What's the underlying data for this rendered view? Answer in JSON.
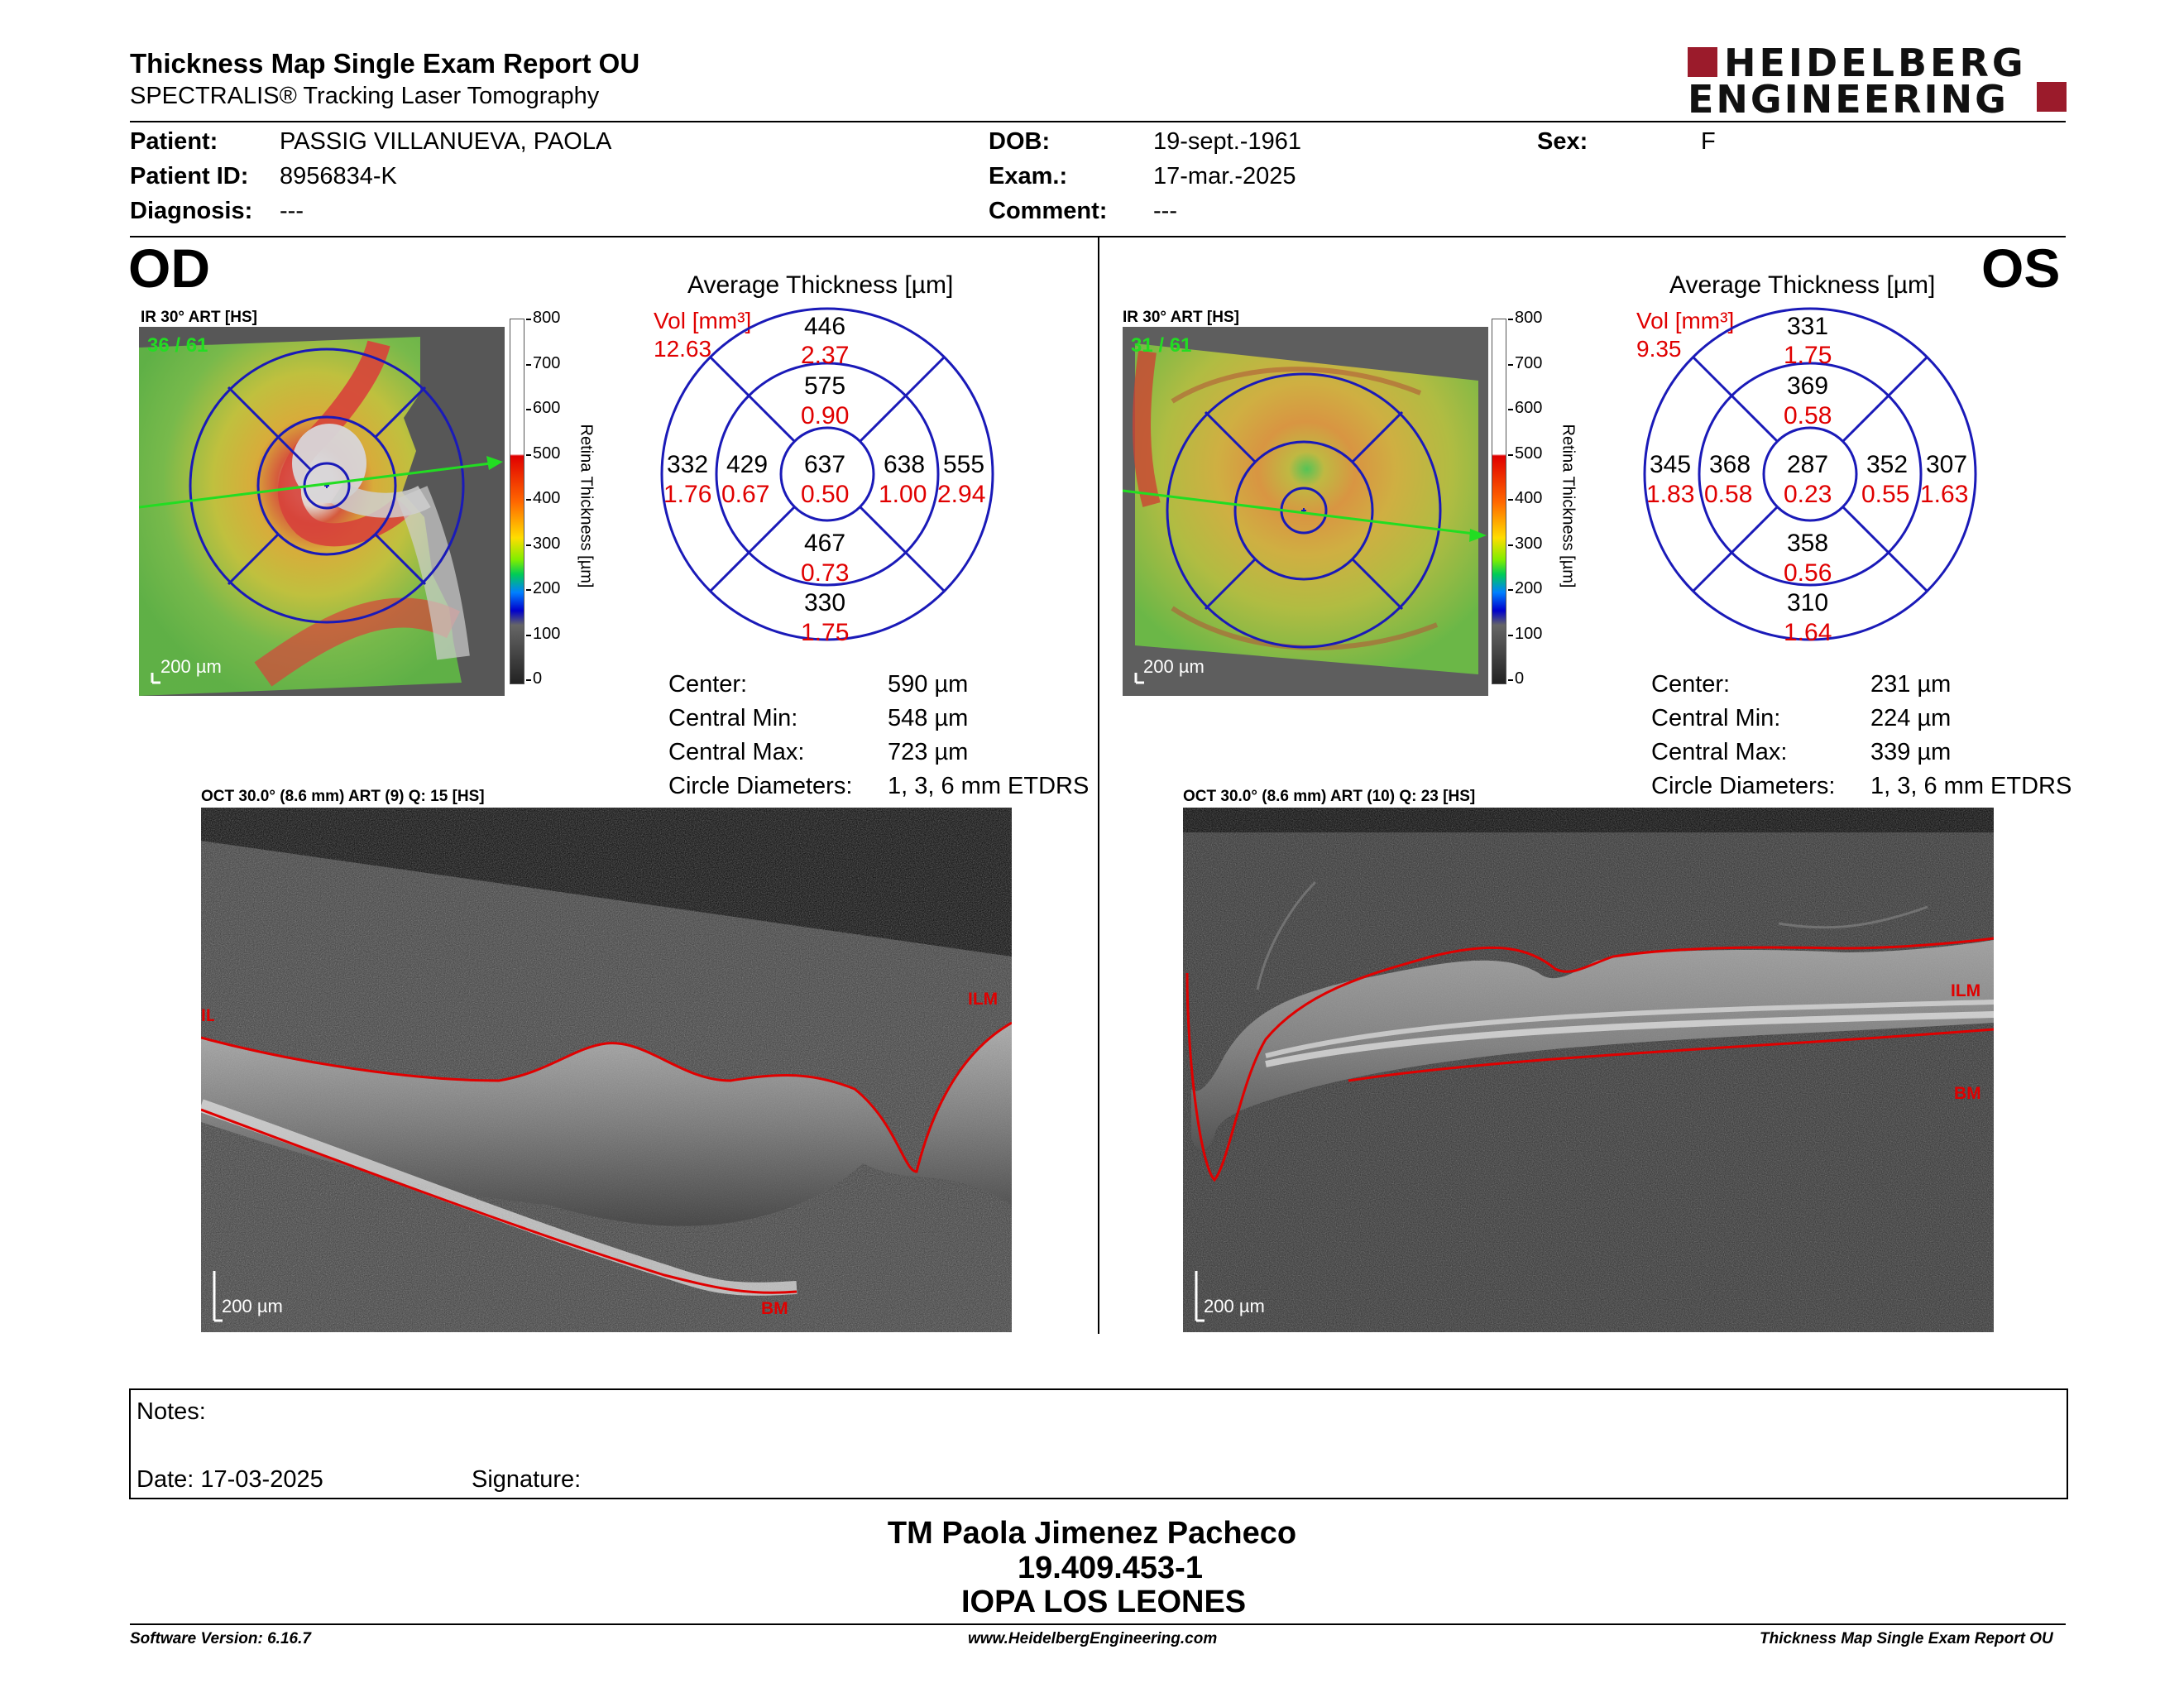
{
  "header": {
    "title": "Thickness Map Single Exam Report OU",
    "subtitle": "SPECTRALIS® Tracking Laser Tomography",
    "logo_line1": "HEIDELBERG",
    "logo_line2": "ENGINEERING"
  },
  "patient": {
    "patient_label": "Patient:",
    "patient_value": "PASSIG VILLANUEVA, PAOLA",
    "id_label": "Patient ID:",
    "id_value": "8956834-K",
    "diag_label": "Diagnosis:",
    "diag_value": "---",
    "dob_label": "DOB:",
    "dob_value": "19-sept.-1961",
    "exam_label": "Exam.:",
    "exam_value": "17-mar.-2025",
    "comment_label": "Comment:",
    "comment_value": "---",
    "sex_label": "Sex:",
    "sex_value": "F"
  },
  "od": {
    "eye": "OD",
    "ir_label": "IR 30° ART [HS]",
    "ir_count": "36 / 61",
    "scale": "200 µm",
    "colorbar_ticks": [
      "800",
      "700",
      "600",
      "500",
      "400",
      "300",
      "200",
      "100",
      "0"
    ],
    "colorbar_title": "Retina  Thickness [µm]",
    "avg_title": "Average Thickness [µm]",
    "vol_label": "Vol [mm³]",
    "vol_value": "12.63",
    "sectors": {
      "outer_top": {
        "t": "446",
        "v": "2.37"
      },
      "inner_top": {
        "t": "575",
        "v": "0.90"
      },
      "center": {
        "t": "637",
        "v": "0.50"
      },
      "inner_left": {
        "t": "429",
        "v": "0.67"
      },
      "outer_left": {
        "t": "332",
        "v": "1.76"
      },
      "inner_right": {
        "t": "638",
        "v": "1.00"
      },
      "outer_right": {
        "t": "555",
        "v": "2.94"
      },
      "inner_bottom": {
        "t": "467",
        "v": "0.73"
      },
      "outer_bottom": {
        "t": "330",
        "v": "1.75"
      }
    },
    "stats": [
      {
        "label": "Center:",
        "value": "590 µm"
      },
      {
        "label": "Central Min:",
        "value": "548 µm"
      },
      {
        "label": "Central Max:",
        "value": "723 µm"
      },
      {
        "label": "Circle Diameters:",
        "value": "1, 3, 6 mm ETDRS"
      }
    ],
    "oct_label": "OCT 30.0° (8.6 mm) ART (9) Q: 15 [HS]",
    "oct_ilm": "ILM",
    "oct_ilm_left": "ILM",
    "oct_bm": "BM",
    "oct_scale": "200 µm"
  },
  "os": {
    "eye": "OS",
    "ir_label": "IR 30° ART [HS]",
    "ir_count": "31 / 61",
    "scale": "200 µm",
    "colorbar_ticks": [
      "800",
      "700",
      "600",
      "500",
      "400",
      "300",
      "200",
      "100",
      "0"
    ],
    "colorbar_title": "Retina  Thickness [µm]",
    "avg_title": "Average Thickness [µm]",
    "vol_label": "Vol [mm³]",
    "vol_value": "9.35",
    "sectors": {
      "outer_top": {
        "t": "331",
        "v": "1.75"
      },
      "inner_top": {
        "t": "369",
        "v": "0.58"
      },
      "center": {
        "t": "287",
        "v": "0.23"
      },
      "inner_left": {
        "t": "368",
        "v": "0.58"
      },
      "outer_left": {
        "t": "345",
        "v": "1.83"
      },
      "inner_right": {
        "t": "352",
        "v": "0.55"
      },
      "outer_right": {
        "t": "307",
        "v": "1.63"
      },
      "inner_bottom": {
        "t": "358",
        "v": "0.56"
      },
      "outer_bottom": {
        "t": "310",
        "v": "1.64"
      }
    },
    "stats": [
      {
        "label": "Center:",
        "value": "231 µm"
      },
      {
        "label": "Central Min:",
        "value": "224 µm"
      },
      {
        "label": "Central Max:",
        "value": "339 µm"
      },
      {
        "label": "Circle Diameters:",
        "value": "1, 3, 6 mm ETDRS"
      }
    ],
    "oct_label": "OCT 30.0° (8.6 mm) ART (10) Q: 23 [HS]",
    "oct_ilm": "ILM",
    "oct_bm": "BM",
    "oct_scale": "200 µm"
  },
  "notes": {
    "notes_label": "Notes:",
    "date_label": "Date: 17-03-2025",
    "signature_label": "Signature:"
  },
  "signer": {
    "name": "TM Paola Jimenez Pacheco",
    "id": "19.409.453-1",
    "institution": "IOPA LOS LEONES"
  },
  "footer": {
    "version": "Software Version: 6.16.7",
    "website": "www.HeidelbergEngineering.com",
    "report": "Thickness Map Single Exam Report OU"
  },
  "colors": {
    "accent_red": "#e00000",
    "logo_red": "#9b1b2b",
    "grid_blue": "#1a1ab8",
    "scan_green": "#22dd22"
  }
}
